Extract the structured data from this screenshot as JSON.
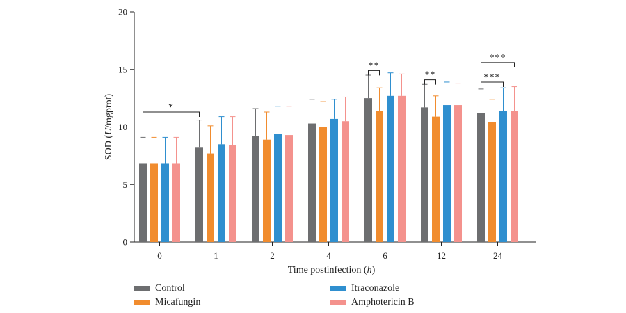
{
  "chart_data": {
    "type": "bar",
    "title": "",
    "xlabel": "Time postinfection (",
    "xlabel_unit": "h",
    "xlabel_close": ")",
    "ylabel": "SOD (",
    "ylabel_unit": "U",
    "ylabel_close": "/mgprot)",
    "ylim": [
      0,
      20
    ],
    "yticks": [
      0,
      5,
      10,
      15,
      20
    ],
    "categories": [
      "0",
      "1",
      "2",
      "4",
      "6",
      "12",
      "24"
    ],
    "series": [
      {
        "name": "Control",
        "color": "#6d6e70",
        "values": [
          6.8,
          8.2,
          9.2,
          10.3,
          12.5,
          11.7,
          11.2
        ],
        "errors": [
          2.3,
          2.4,
          2.4,
          2.1,
          2.0,
          2.0,
          2.1
        ]
      },
      {
        "name": "Micafungin",
        "color": "#f18c2e",
        "values": [
          6.8,
          7.7,
          8.9,
          10.0,
          11.4,
          10.9,
          10.4
        ],
        "errors": [
          2.3,
          2.4,
          2.4,
          2.2,
          2.0,
          1.8,
          2.0
        ]
      },
      {
        "name": "Itraconazole",
        "color": "#2f8fcf",
        "values": [
          6.8,
          8.5,
          9.4,
          10.7,
          12.7,
          11.9,
          11.4
        ],
        "errors": [
          2.3,
          2.4,
          2.4,
          1.7,
          2.0,
          2.0,
          2.0
        ]
      },
      {
        "name": "Amphotericin B",
        "color": "#f4928d",
        "values": [
          6.8,
          8.4,
          9.3,
          10.5,
          12.7,
          11.9,
          11.4
        ],
        "errors": [
          2.3,
          2.5,
          2.5,
          2.1,
          1.9,
          1.9,
          2.1
        ]
      }
    ],
    "significance": [
      {
        "label": "*",
        "category_from": 0,
        "series_from": 0,
        "category_to": 1,
        "series_to": 0,
        "y": 11.3
      },
      {
        "label": "**",
        "category_from": 4,
        "series_from": 0,
        "category_to": 4,
        "series_to": 1,
        "y": 14.9
      },
      {
        "label": "**",
        "category_from": 5,
        "series_from": 0,
        "category_to": 5,
        "series_to": 1,
        "y": 14.1
      },
      {
        "label": "***",
        "category_from": 6,
        "series_from": 0,
        "category_to": 6,
        "series_to": 2,
        "y": 13.9
      },
      {
        "label": "***",
        "category_from": 6,
        "series_from": 0,
        "category_to": 6,
        "series_to": 3,
        "y": 15.6
      }
    ],
    "grid": false,
    "legend_position": "bottom"
  }
}
